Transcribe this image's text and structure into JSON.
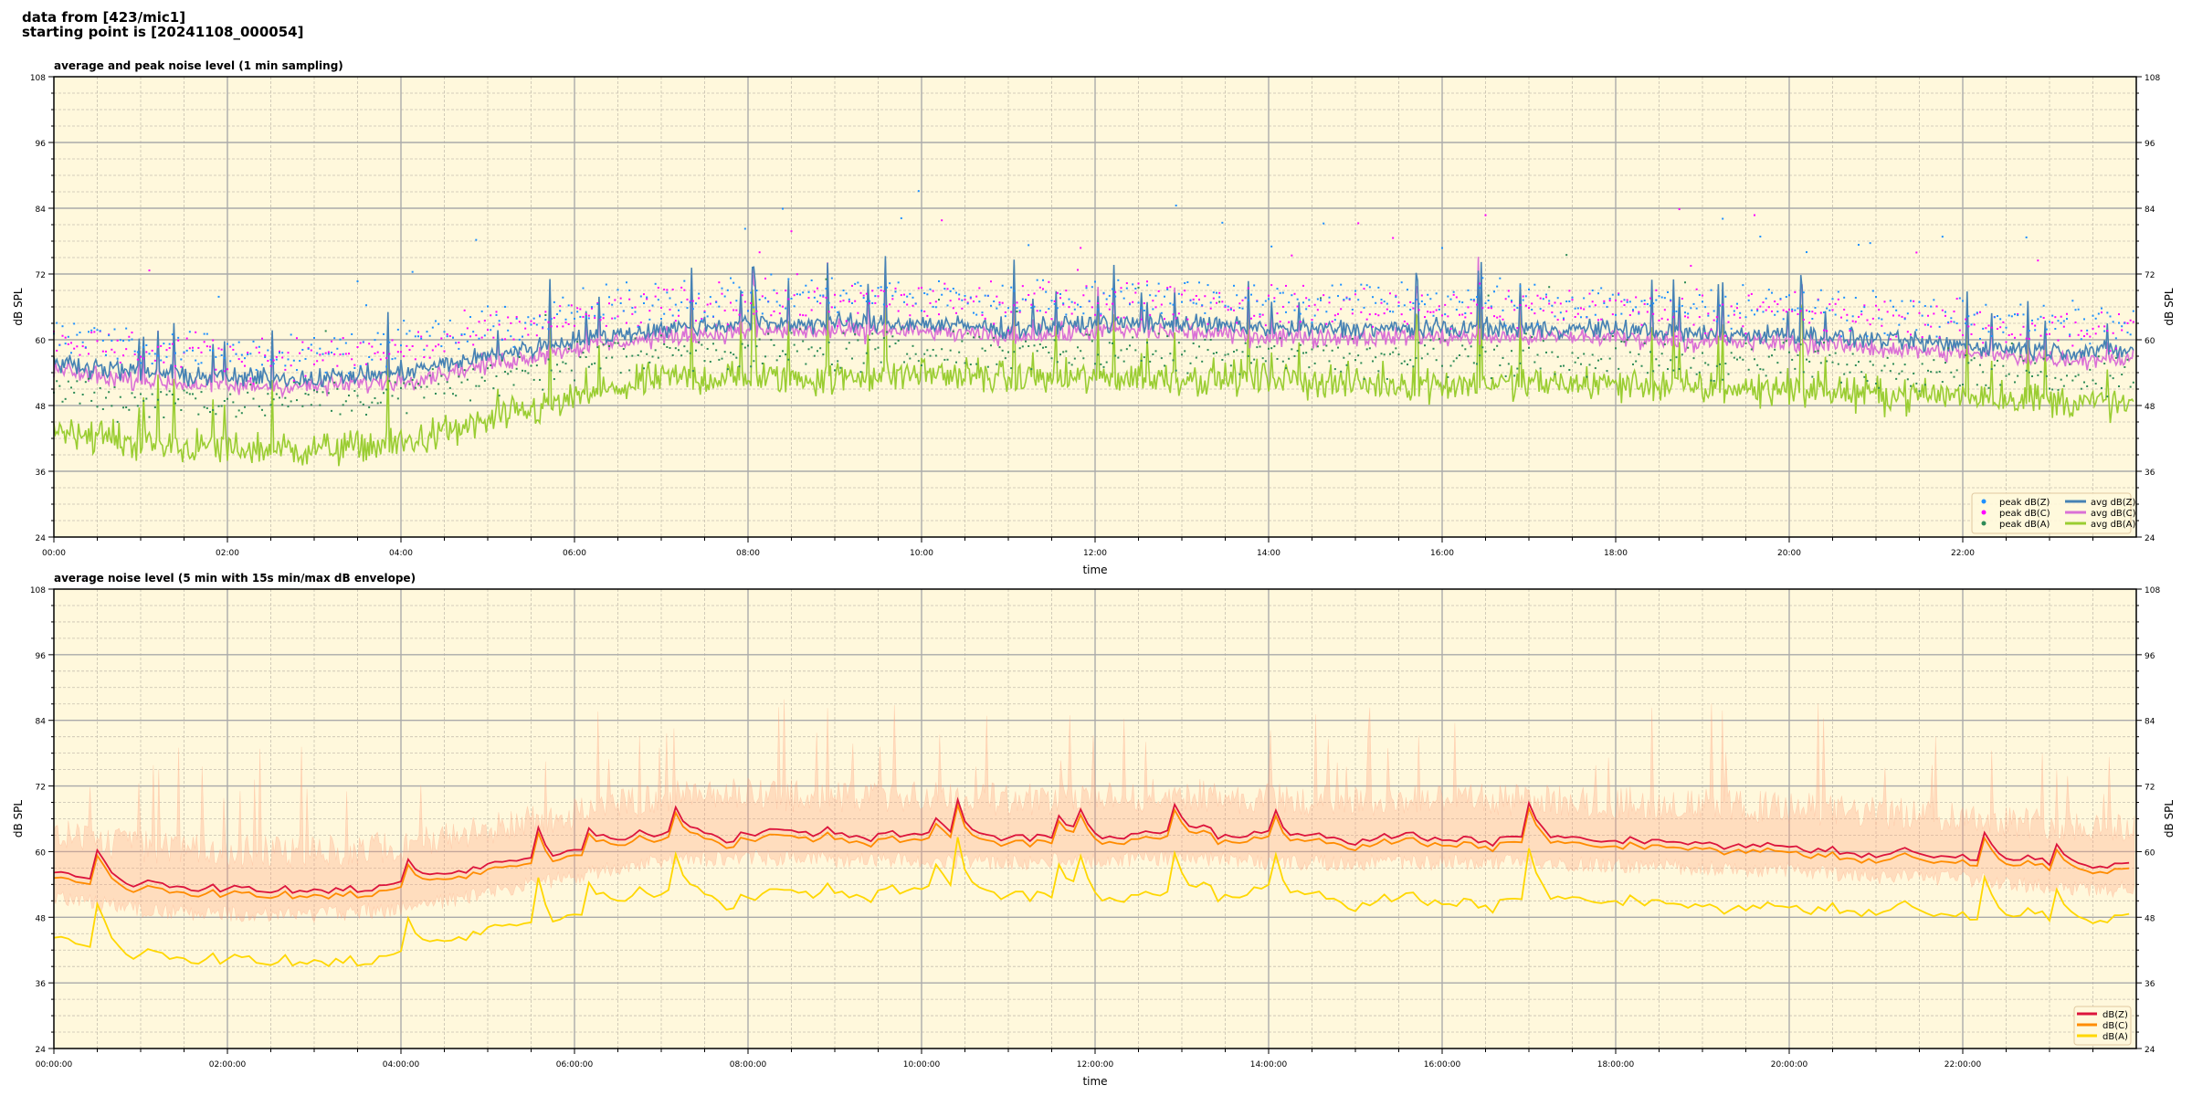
{
  "header": {
    "line1": "data from [423/mic1]",
    "line2": "starting point is [20241108_000054]"
  },
  "colors": {
    "background": "#fff8dc",
    "avg_z": "#4682b4",
    "avg_c": "#da70d6",
    "avg_a": "#9acd32",
    "peak_z": "#1e90ff",
    "peak_c": "#ff00ff",
    "peak_a": "#2e8b57",
    "z": "#dc143c",
    "c": "#ff8c00",
    "a": "#ffd700",
    "envelope": "#ffa07a"
  },
  "chart_data": [
    {
      "type": "line",
      "title": "average and peak noise level (1 min sampling)",
      "xlabel": "time",
      "ylabel": "dB SPL",
      "xlim_hours": [
        0,
        24
      ],
      "ylim": [
        24,
        108
      ],
      "yticks": [
        "24",
        "36",
        "48",
        "60",
        "72",
        "84",
        "96",
        "108"
      ],
      "xticks": [
        "00:00",
        "02:00",
        "04:00",
        "06:00",
        "08:00",
        "10:00",
        "12:00",
        "14:00",
        "16:00",
        "18:00",
        "20:00",
        "22:00"
      ],
      "grid": true,
      "legend_placement": "lower-right",
      "x_hours": [
        0,
        1,
        2,
        3,
        4,
        5,
        6,
        7,
        8,
        9,
        10,
        11,
        12,
        13,
        14,
        15,
        16,
        17,
        18,
        19,
        20,
        21,
        22,
        23,
        24
      ],
      "series": [
        {
          "name": "peak dB(Z)",
          "style": "scatter",
          "values": [
            61,
            59,
            58,
            58,
            59,
            62,
            65,
            67,
            68,
            68,
            68,
            67,
            68,
            68,
            67,
            67,
            67,
            67,
            67,
            66,
            66,
            65,
            64,
            63,
            63
          ]
        },
        {
          "name": "peak dB(C)",
          "style": "scatter",
          "values": [
            60,
            58,
            57,
            57,
            58,
            61,
            64,
            66,
            67,
            67,
            67,
            66,
            67,
            67,
            66,
            66,
            66,
            66,
            66,
            65,
            65,
            64,
            63,
            62,
            62
          ]
        },
        {
          "name": "peak dB(A)",
          "style": "scatter",
          "values": [
            51,
            49,
            49,
            49,
            50,
            53,
            56,
            58,
            58,
            58,
            58,
            58,
            58,
            58,
            58,
            57,
            57,
            57,
            57,
            56,
            56,
            55,
            55,
            54,
            54
          ]
        },
        {
          "name": "avg dB(Z)",
          "style": "line",
          "values": [
            56,
            54,
            53,
            53,
            54,
            57,
            60,
            62,
            63,
            63,
            63,
            62,
            63,
            63,
            62,
            62,
            62,
            62,
            62,
            61,
            61,
            60,
            59,
            58,
            58
          ]
        },
        {
          "name": "avg dB(C)",
          "style": "line",
          "values": [
            54.5,
            52.5,
            51.5,
            51.5,
            52.5,
            55.5,
            58.5,
            60.5,
            61.5,
            61.5,
            61.5,
            60.5,
            61.5,
            61.5,
            60.5,
            60.5,
            60.5,
            60.5,
            60.5,
            59.5,
            59.5,
            58.5,
            57.5,
            56.5,
            56.5
          ]
        },
        {
          "name": "avg dB(A)",
          "style": "line",
          "values": [
            44,
            41,
            40,
            40,
            41,
            45,
            49,
            53,
            53,
            53,
            54,
            53,
            53,
            53,
            53,
            52,
            52,
            52,
            52,
            51,
            51,
            50,
            50,
            49,
            48
          ]
        }
      ]
    },
    {
      "type": "line",
      "title": "average noise level (5 min with 15s min/max dB envelope)",
      "xlabel": "time",
      "ylabel": "dB SPL",
      "xlim_hours": [
        0,
        24
      ],
      "ylim": [
        24,
        108
      ],
      "yticks": [
        "24",
        "36",
        "48",
        "60",
        "72",
        "84",
        "96",
        "108"
      ],
      "xticks": [
        "00:00:00",
        "02:00:00",
        "04:00:00",
        "06:00:00",
        "08:00:00",
        "10:00:00",
        "12:00:00",
        "14:00:00",
        "16:00:00",
        "18:00:00",
        "20:00:00",
        "22:00:00"
      ],
      "grid": true,
      "legend_placement": "lower-right",
      "x_hours": [
        0,
        1,
        2,
        3,
        4,
        5,
        6,
        7,
        8,
        9,
        10,
        11,
        12,
        13,
        14,
        15,
        16,
        17,
        18,
        19,
        20,
        21,
        22,
        23,
        24
      ],
      "series": [
        {
          "name": "dB(Z)",
          "values": [
            56,
            54,
            53,
            53,
            54,
            57,
            60,
            63,
            63.5,
            63,
            63,
            62.5,
            63,
            63.5,
            62.5,
            62.5,
            62.5,
            62.5,
            62,
            61.5,
            61,
            60,
            59.5,
            58,
            57.5
          ]
        },
        {
          "name": "dB(C)",
          "values": [
            55,
            53,
            52,
            52,
            53,
            56,
            59,
            62,
            62.5,
            62,
            62,
            61.5,
            62,
            62.5,
            61.5,
            61.5,
            61.5,
            61.5,
            61,
            60.5,
            60,
            59,
            58.5,
            57,
            56.5
          ]
        },
        {
          "name": "dB(A)",
          "values": [
            44,
            41,
            40,
            40,
            41,
            45,
            48,
            52,
            52,
            52,
            53,
            52,
            52,
            52,
            52,
            51,
            51,
            51,
            51,
            50,
            50,
            50,
            49,
            48,
            48
          ]
        }
      ]
    }
  ]
}
